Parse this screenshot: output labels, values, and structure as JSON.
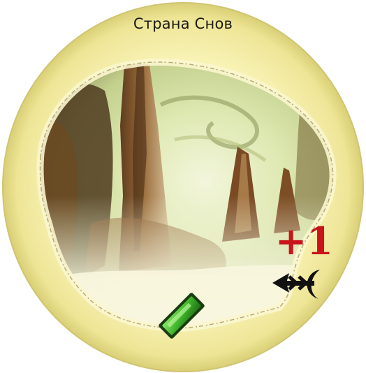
{
  "token": {
    "title": "Страна Снов",
    "bonus": "+1",
    "icons": {
      "movement": "arrow-with-crescent-icon",
      "gem": "green-gem-icon"
    },
    "colors": {
      "rim": "#f6f0a4",
      "bonus": "#c8141a",
      "gem": "#3fb52a",
      "arrow": "#111111"
    }
  }
}
